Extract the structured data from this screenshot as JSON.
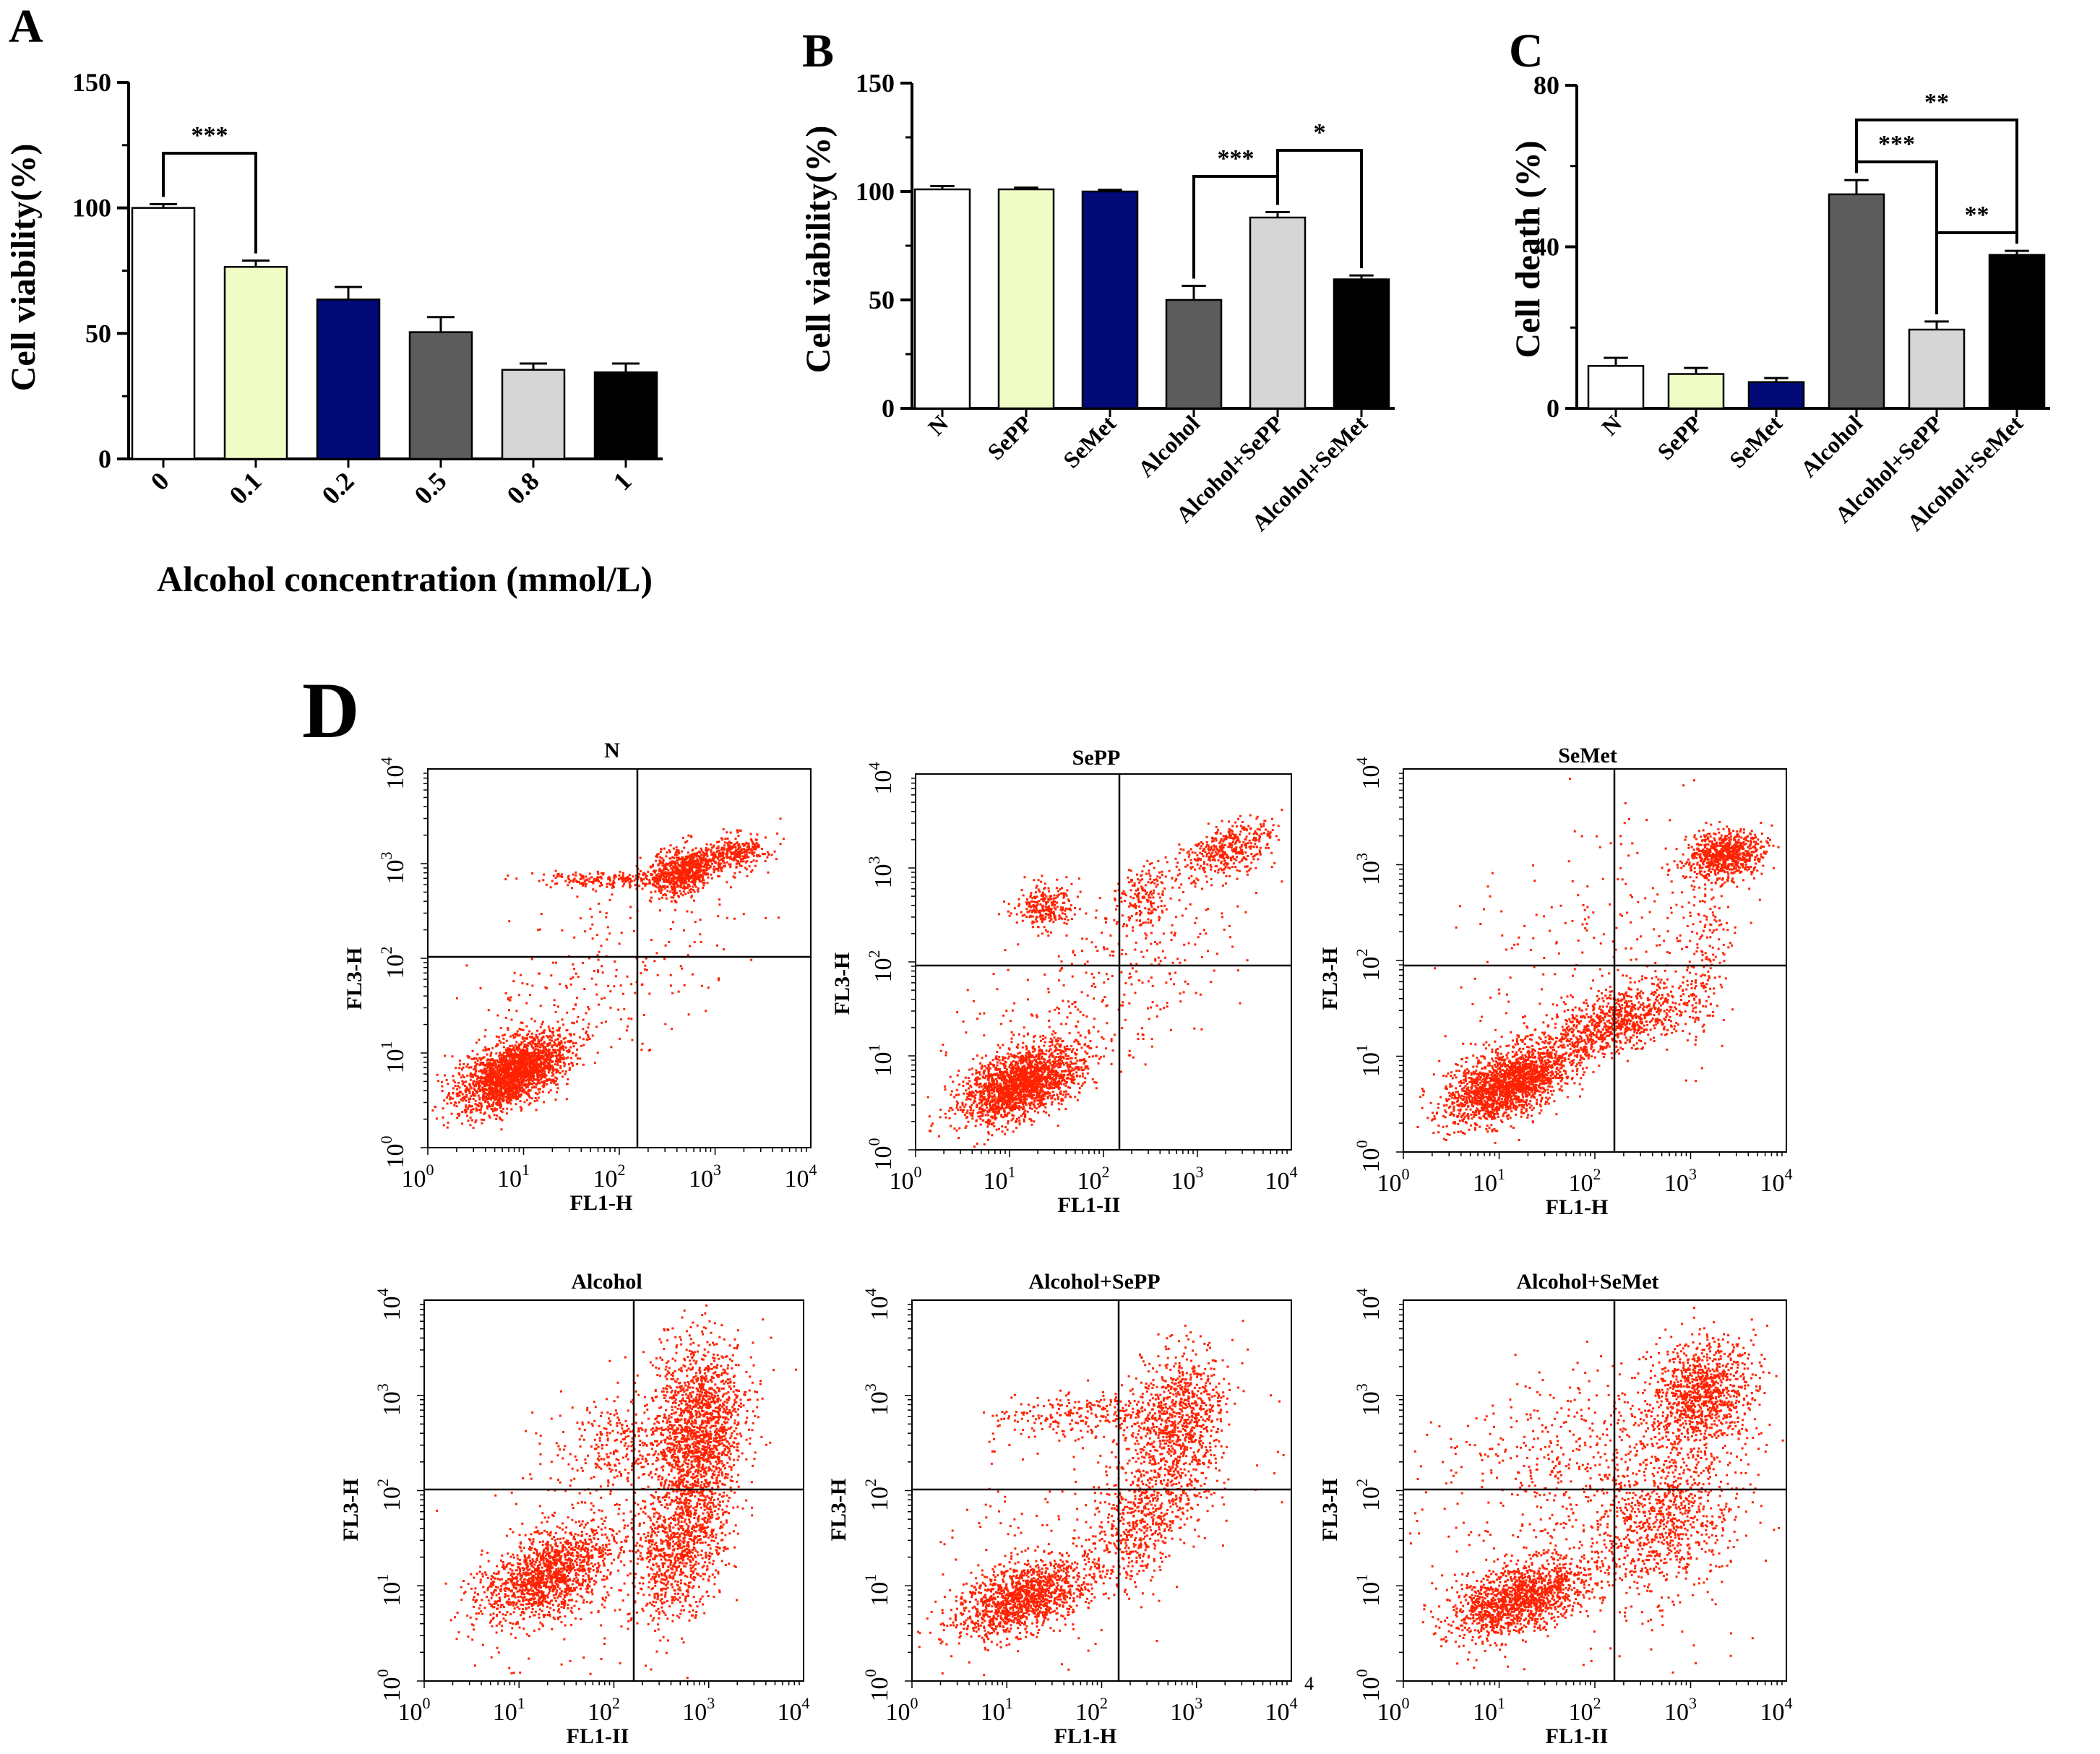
{
  "panel_labels": {
    "A": "A",
    "B": "B",
    "C": "C",
    "D": "D"
  },
  "chart_data": [
    {
      "id": "A",
      "type": "bar",
      "title": "",
      "ylabel": "Cell viability(%)",
      "xlabel": "Alcohol concentration (mmol/L)",
      "ylim": [
        0,
        150
      ],
      "yticks": [
        "0",
        "50",
        "100",
        "150"
      ],
      "categories": [
        "0",
        "0.1",
        "0.2",
        "0.5",
        "0.8",
        "1"
      ],
      "values": [
        100,
        76.5,
        63.5,
        50.5,
        35.5,
        34.5
      ],
      "errors": [
        1.5,
        2.5,
        5,
        6,
        2.5,
        3.5
      ],
      "colors": [
        "#ffffff",
        "#f0fcc6",
        "#020a78",
        "#5c5c5c",
        "#d6d6d6",
        "#000000"
      ],
      "significance": [
        {
          "from": 0,
          "to": 1,
          "label": "***"
        }
      ]
    },
    {
      "id": "B",
      "type": "bar",
      "title": "",
      "ylabel": "Cell viability(%)",
      "xlabel": "",
      "ylim": [
        0,
        150
      ],
      "yticks": [
        "0",
        "50",
        "100",
        "150"
      ],
      "categories": [
        "N",
        "SePP",
        "SeMet",
        "Alcohol",
        "Alcohol+SePP",
        "Alcohol+SeMet"
      ],
      "values": [
        101,
        101,
        100,
        50,
        88,
        59.5
      ],
      "errors": [
        1.5,
        0.8,
        0.8,
        6.5,
        2.5,
        1.8
      ],
      "colors": [
        "#ffffff",
        "#f0fcc6",
        "#020a78",
        "#5c5c5c",
        "#d6d6d6",
        "#000000"
      ],
      "significance": [
        {
          "from": 3,
          "to": 4,
          "label": "***"
        },
        {
          "from": 4,
          "to": 5,
          "label": "*"
        }
      ]
    },
    {
      "id": "C",
      "type": "bar",
      "title": "",
      "ylabel": "Cell death (%)",
      "xlabel": "",
      "ylim": [
        0,
        80
      ],
      "yticks": [
        "0",
        "40",
        "80"
      ],
      "categories": [
        "N",
        "SePP",
        "SeMet",
        "Alcohol",
        "Alcohol+SePP",
        "Alcohol+SeMet"
      ],
      "values": [
        10.5,
        8.5,
        6.5,
        53,
        19.5,
        38
      ],
      "errors": [
        2,
        1.5,
        1,
        3.5,
        2,
        1
      ],
      "colors": [
        "#ffffff",
        "#f0fcc6",
        "#020a78",
        "#5c5c5c",
        "#d6d6d6",
        "#000000"
      ],
      "significance": [
        {
          "from": 3,
          "to": 4,
          "label": "***"
        },
        {
          "from": 3,
          "to": 5,
          "label": "**"
        },
        {
          "from": 4,
          "to": 5,
          "label": "**"
        }
      ]
    }
  ],
  "flow_plots": [
    {
      "title": "N",
      "xlabel": "FL1-H",
      "ylabel": "FL3-H",
      "stray": ""
    },
    {
      "title": "SePP",
      "xlabel": "FL1-II",
      "ylabel": "FL3-H",
      "stray": ""
    },
    {
      "title": "SeMet",
      "xlabel": "FL1-H",
      "ylabel": "FL3-H",
      "stray": ""
    },
    {
      "title": "Alcohol",
      "xlabel": "FL1-II",
      "ylabel": "FL3-H",
      "stray": ""
    },
    {
      "title": "Alcohol+SePP",
      "xlabel": "FL1-H",
      "ylabel": "FL3-H",
      "stray": "4"
    },
    {
      "title": "Alcohol+SeMet",
      "xlabel": "FL1-II",
      "ylabel": "FL3-H",
      "stray": ""
    }
  ],
  "flow_axis": {
    "base": "10",
    "exponents": [
      "0",
      "1",
      "2",
      "3",
      "4"
    ]
  },
  "colors": {
    "dots": "#ff2200",
    "axis": "#000000"
  }
}
